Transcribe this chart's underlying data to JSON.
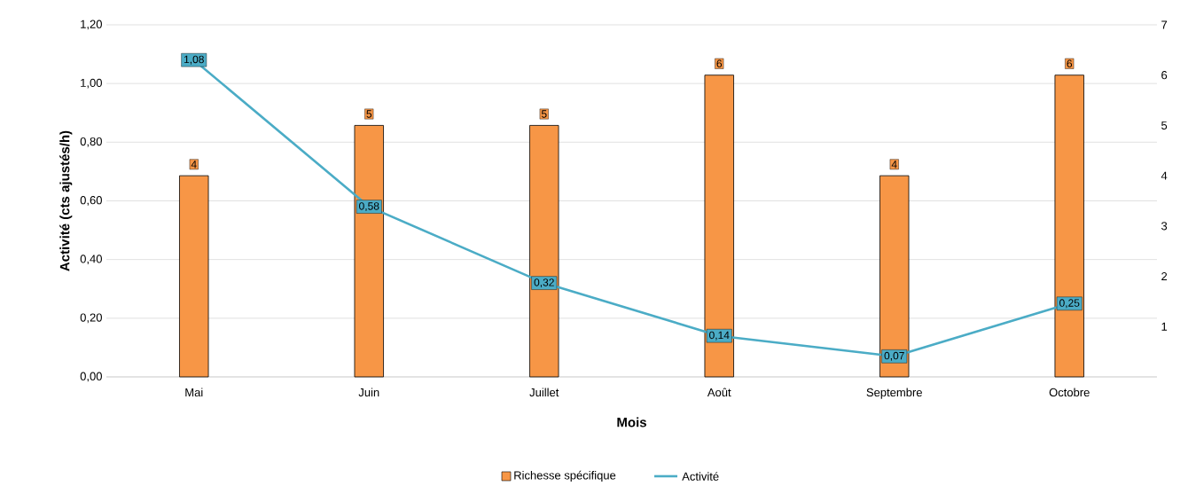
{
  "chart_data": {
    "type": "bar",
    "xlabel": "Mois",
    "ylabel": "Activité (cts ajustés/h)",
    "categories": [
      "Mai",
      "Juin",
      "Juillet",
      "Août",
      "Septembre",
      "Octobre"
    ],
    "series": [
      {
        "name": "Richesse spécifique",
        "axis": "y2",
        "color": "#f79646",
        "values": [
          4,
          5,
          5,
          6,
          4,
          6
        ],
        "value_labels": [
          "4",
          "5",
          "5",
          "6",
          "4",
          "6"
        ]
      },
      {
        "name": "Activité",
        "type": "line",
        "marker": "square",
        "color": "#4bacc6",
        "values": [
          1.08,
          0.58,
          0.32,
          0.14,
          0.07,
          0.25
        ],
        "value_labels": [
          "1,08",
          "0,58",
          "0,32",
          "0,14",
          "0,07",
          "0,25"
        ]
      }
    ],
    "ylim": [
      0,
      1.2
    ],
    "yticks": [
      {
        "value": 0,
        "label": "0,00"
      },
      {
        "value": 0.2,
        "label": "0,20"
      },
      {
        "value": 0.4,
        "label": "0,40"
      },
      {
        "value": 0.6,
        "label": "0,60"
      },
      {
        "value": 0.8,
        "label": "0,80"
      },
      {
        "value": 1.0,
        "label": "1,00"
      },
      {
        "value": 1.2,
        "label": "1,20"
      }
    ],
    "y2lim": [
      0,
      7
    ],
    "y2ticks": [
      1,
      2,
      3,
      4,
      5,
      6,
      7
    ],
    "grid": "y",
    "legend": "bottom"
  }
}
